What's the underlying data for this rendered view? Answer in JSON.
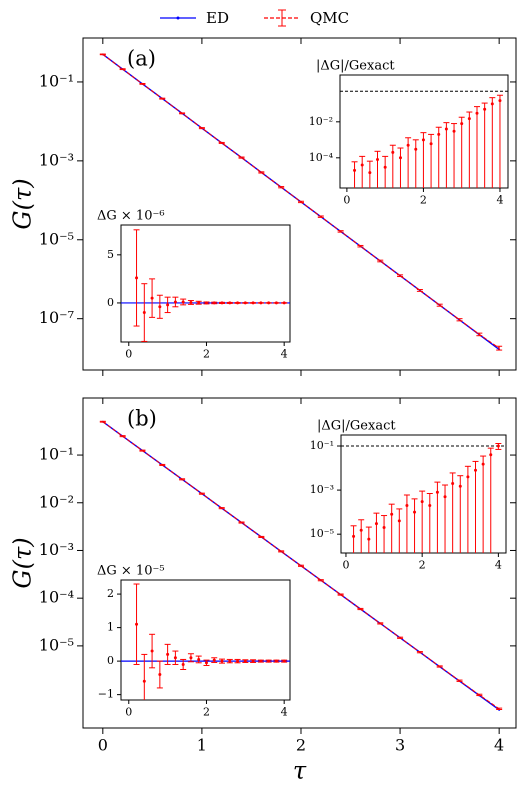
{
  "chart_data": [
    {
      "type": "line",
      "label": "(a)",
      "ylabel": "G(τ)",
      "log_y": true,
      "xlim": [
        -0.2,
        4.17
      ],
      "ylim": [
        5e-09,
        1.3
      ],
      "xticks": [
        0,
        1,
        2,
        3,
        4
      ],
      "yticks": [
        {
          "value": 0.1,
          "label": "10⁻¹"
        },
        {
          "value": 0.001,
          "label": "10⁻³"
        },
        {
          "value": 1e-05,
          "label": "10⁻⁵"
        },
        {
          "value": 1e-07,
          "label": "10⁻⁷"
        }
      ],
      "series": [
        {
          "name": "ED",
          "color": "#0000ff",
          "x": [
            0,
            0.2,
            0.4,
            0.6,
            0.8,
            1,
            1.2,
            1.4,
            1.6,
            1.8,
            2,
            2.2,
            2.4,
            2.6,
            2.8,
            3,
            3.2,
            3.4,
            3.6,
            3.8,
            4
          ],
          "values": [
            0.5,
            0.211,
            0.0893,
            0.0378,
            0.016,
            0.00675,
            0.00285,
            0.00121,
            0.000509,
            0.000215,
            9.1e-05,
            3.85e-05,
            1.63e-05,
            6.87e-06,
            2.9e-06,
            1.23e-06,
            5.19e-07,
            2.19e-07,
            9.27e-08,
            3.92e-08,
            1.66e-08
          ]
        },
        {
          "name": "QMC",
          "color": "#ff0000",
          "x": [
            0,
            0.2,
            0.4,
            0.6,
            0.8,
            1,
            1.2,
            1.4,
            1.6,
            1.8,
            2,
            2.2,
            2.4,
            2.6,
            2.8,
            3,
            3.2,
            3.4,
            3.6,
            3.8,
            4
          ],
          "values": [
            0.5,
            0.211,
            0.0893,
            0.0378,
            0.016,
            0.00675,
            0.00285,
            0.00121,
            0.000509,
            0.000215,
            9.1e-05,
            3.85e-05,
            1.63e-05,
            6.87e-06,
            2.9e-06,
            1.23e-06,
            5.2e-07,
            2.2e-07,
            9.4e-08,
            4e-08,
            1.8e-08
          ],
          "errors": [
            0.01,
            0.005,
            0.002,
            0.001,
            0.0004,
            0.0002,
            8e-05,
            4e-05,
            1.8e-05,
            8e-06,
            3.6e-06,
            1.6e-06,
            7e-07,
            3e-07,
            1.4e-07,
            6e-08,
            2.8e-08,
            1.3e-08,
            6e-09,
            3e-09,
            2e-09
          ]
        }
      ],
      "insets": [
        {
          "type": "errorbar",
          "title": "|ΔG|/Gexact",
          "log_y": true,
          "xlim": [
            -0.18,
            4.21
          ],
          "ylim": [
            2.1e-06,
            4
          ],
          "xticks": [
            0,
            2,
            4
          ],
          "yticks": [
            {
              "value": 0.01,
              "label": "10⁻²"
            },
            {
              "value": 0.0001,
              "label": "10⁻⁴"
            }
          ],
          "hline": 0.5,
          "color": "#ff0000",
          "x": [
            0.2,
            0.4,
            0.6,
            0.8,
            1,
            1.2,
            1.4,
            1.6,
            1.8,
            2,
            2.2,
            2.4,
            2.6,
            2.8,
            3,
            3.2,
            3.4,
            3.6,
            3.8,
            4
          ],
          "values": [
            2e-05,
            4e-05,
            1.5e-05,
            8e-05,
            3e-05,
            0.0002,
            0.0001,
            0.0005,
            0.0003,
            0.001,
            0.0006,
            0.002,
            0.004,
            0.003,
            0.008,
            0.015,
            0.03,
            0.05,
            0.1,
            0.15
          ],
          "errors": [
            4e-05,
            8e-05,
            5e-05,
            0.00015,
            9e-05,
            0.0003,
            0.00025,
            0.0008,
            0.0007,
            0.0015,
            0.0014,
            0.003,
            0.005,
            0.005,
            0.01,
            0.02,
            0.04,
            0.06,
            0.12,
            0.15
          ]
        },
        {
          "type": "errorbar",
          "title": "ΔG × 10⁻⁶",
          "log_y": false,
          "xlim": [
            -0.2,
            4.15
          ],
          "ylim": [
            -4.06,
            8.1
          ],
          "xticks": [
            0,
            2,
            4
          ],
          "yticks": [
            0,
            5
          ],
          "baseline": 0,
          "baseline_color": "#0000ff",
          "color": "#ff0000",
          "x": [
            0.2,
            0.4,
            0.6,
            0.8,
            1,
            1.2,
            1.4,
            1.6,
            1.8,
            2,
            2.2,
            2.4,
            2.6,
            2.8,
            3,
            3.2,
            3.4,
            3.6,
            3.8,
            4
          ],
          "values": [
            2.6,
            -1.0,
            0.5,
            -0.4,
            -0.2,
            0.1,
            0.1,
            0.05,
            0.02,
            0,
            0,
            0,
            0,
            0,
            0,
            0,
            0,
            0,
            0,
            0
          ],
          "errors": [
            5,
            3,
            2,
            1.2,
            0.8,
            0.5,
            0.3,
            0.2,
            0.15,
            0.1,
            0.08,
            0.06,
            0.05,
            0.04,
            0.03,
            0.03,
            0.02,
            0.02,
            0.02,
            0.02
          ]
        }
      ]
    },
    {
      "type": "line",
      "label": "(b)",
      "ylabel": "G(τ)",
      "xlabel": "τ",
      "log_y": true,
      "xlim": [
        -0.2,
        4.17
      ],
      "ylim": [
        1.9e-07,
        1.57
      ],
      "xticks": [
        0,
        1,
        2,
        3,
        4
      ],
      "yticks": [
        {
          "value": 0.1,
          "label": "10⁻¹"
        },
        {
          "value": 0.01,
          "label": "10⁻²"
        },
        {
          "value": 0.001,
          "label": "10⁻³"
        },
        {
          "value": 0.0001,
          "label": "10⁻⁴"
        },
        {
          "value": 1e-05,
          "label": "10⁻⁵"
        }
      ],
      "series": [
        {
          "name": "ED",
          "color": "#0000ff",
          "x": [
            0,
            0.2,
            0.4,
            0.6,
            0.8,
            1,
            1.2,
            1.4,
            1.6,
            1.8,
            2,
            2.2,
            2.4,
            2.6,
            2.8,
            3,
            3.2,
            3.4,
            3.6,
            3.8,
            4
          ],
          "values": [
            0.5,
            0.249,
            0.124,
            0.0621,
            0.031,
            0.0155,
            0.00771,
            0.00385,
            0.00192,
            0.000957,
            0.000478,
            0.000238,
            0.000119,
            5.93e-05,
            2.96e-05,
            1.48e-05,
            7.36e-06,
            3.67e-06,
            1.83e-06,
            9.14e-07,
            4.56e-07
          ]
        },
        {
          "name": "QMC",
          "color": "#ff0000",
          "x": [
            0,
            0.2,
            0.4,
            0.6,
            0.8,
            1,
            1.2,
            1.4,
            1.6,
            1.8,
            2,
            2.2,
            2.4,
            2.6,
            2.8,
            3,
            3.2,
            3.4,
            3.6,
            3.8,
            4
          ],
          "values": [
            0.5,
            0.249,
            0.124,
            0.0621,
            0.031,
            0.0155,
            0.00771,
            0.00385,
            0.00192,
            0.000957,
            0.000478,
            0.000238,
            0.000119,
            5.93e-05,
            2.96e-05,
            1.48e-05,
            7.38e-06,
            3.7e-06,
            1.86e-06,
            9.4e-07,
            4.8e-07
          ],
          "errors": [
            0.01,
            0.006,
            0.003,
            0.0015,
            0.0008,
            0.0004,
            0.0002,
            0.0001,
            5e-05,
            2.5e-05,
            1.3e-05,
            6.5e-06,
            3.3e-06,
            1.7e-06,
            8.5e-07,
            4.3e-07,
            2.2e-07,
            1.1e-07,
            6e-08,
            3e-08,
            1.6e-08
          ]
        }
      ],
      "insets": [
        {
          "type": "errorbar",
          "title": "|ΔG|/Gexact",
          "log_y": true,
          "xlim": [
            -0.13,
            4.2
          ],
          "ylim": [
            1.4e-06,
            0.316
          ],
          "xticks": [
            0,
            2,
            4
          ],
          "yticks": [
            {
              "value": 0.1,
              "label": "10⁻¹"
            },
            {
              "value": 0.001,
              "label": "10⁻³"
            },
            {
              "value": 1e-05,
              "label": "10⁻⁵"
            }
          ],
          "hline": 0.1,
          "color": "#ff0000",
          "x": [
            0.2,
            0.4,
            0.6,
            0.8,
            1,
            1.2,
            1.4,
            1.6,
            1.8,
            2,
            2.2,
            2.4,
            2.6,
            2.8,
            3,
            3.2,
            3.4,
            3.6,
            3.8,
            4
          ],
          "values": [
            8e-06,
            1.5e-05,
            6e-06,
            3e-05,
            2e-05,
            8e-05,
            4e-05,
            0.0002,
            0.0001,
            0.0003,
            0.0002,
            0.0008,
            0.0005,
            0.002,
            0.0015,
            0.004,
            0.008,
            0.015,
            0.04,
            0.1
          ],
          "errors": [
            1.6e-05,
            3e-05,
            1.5e-05,
            6e-05,
            5e-05,
            0.00015,
            0.0001,
            0.0004,
            0.0003,
            0.0006,
            0.0005,
            0.0015,
            0.0012,
            0.004,
            0.003,
            0.008,
            0.012,
            0.02,
            0.04,
            0.03
          ]
        },
        {
          "type": "errorbar",
          "title": "ΔG × 10⁻⁵",
          "log_y": false,
          "xlim": [
            -0.2,
            4.15
          ],
          "ylim": [
            -1.16,
            2.42
          ],
          "xticks": [
            0,
            2,
            4
          ],
          "yticks": [
            {
              "value": -1,
              "label": "−1"
            },
            0,
            1,
            2
          ],
          "baseline": 0,
          "baseline_color": "#0000ff",
          "color": "#ff0000",
          "x": [
            0.2,
            0.4,
            0.6,
            0.8,
            1,
            1.2,
            1.4,
            1.6,
            1.8,
            2,
            2.2,
            2.4,
            2.6,
            2.8,
            3,
            3.2,
            3.4,
            3.6,
            3.8,
            4
          ],
          "values": [
            1.1,
            -0.6,
            0.3,
            -0.4,
            0.2,
            0.1,
            -0.1,
            0.1,
            0.05,
            -0.05,
            0.03,
            0,
            0,
            0,
            0,
            0,
            0,
            0,
            0,
            0
          ],
          "errors": [
            1.2,
            0.8,
            0.5,
            0.4,
            0.3,
            0.2,
            0.15,
            0.12,
            0.1,
            0.08,
            0.07,
            0.06,
            0.05,
            0.05,
            0.04,
            0.04,
            0.03,
            0.03,
            0.03,
            0.03
          ]
        }
      ]
    }
  ]
}
